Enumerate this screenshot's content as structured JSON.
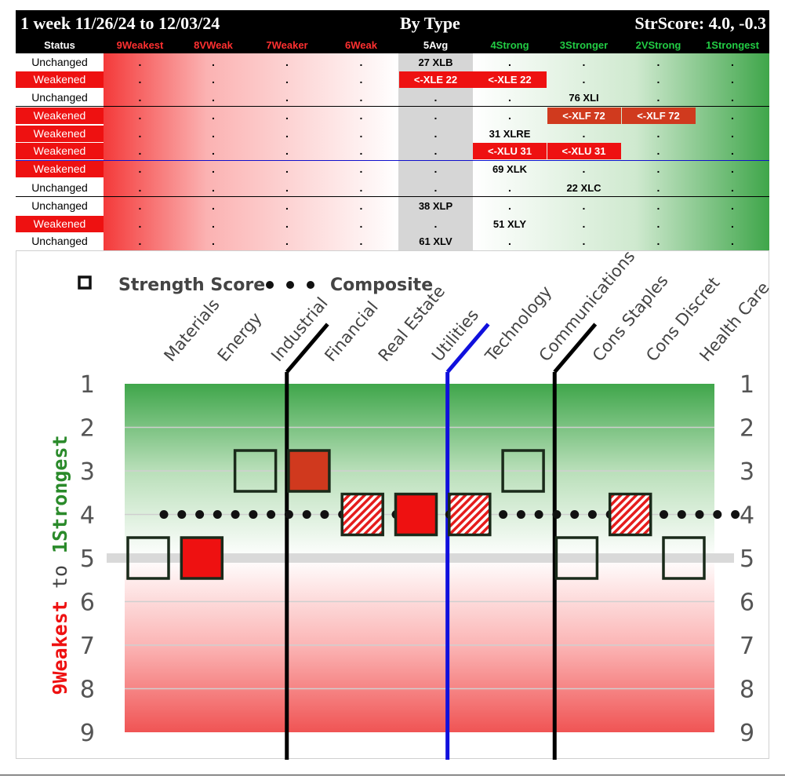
{
  "header": {
    "period": "1 week 11/26/24 to 12/03/24",
    "title": "By Type",
    "strscore": "StrScore: 4.0, -0.3"
  },
  "columns": [
    {
      "label": "Status",
      "color": "#ffffff"
    },
    {
      "label": "9Weakest",
      "color": "#ff3030"
    },
    {
      "label": "8VWeak",
      "color": "#ff3030"
    },
    {
      "label": "7Weaker",
      "color": "#ff3030"
    },
    {
      "label": "6Weak",
      "color": "#ff3030"
    },
    {
      "label": "5Avg",
      "color": "#ffffff"
    },
    {
      "label": "4Strong",
      "color": "#22cc44"
    },
    {
      "label": "3Stronger",
      "color": "#22cc44"
    },
    {
      "label": "2VStrong",
      "color": "#22cc44"
    },
    {
      "label": "1Strongest",
      "color": "#22cc44"
    }
  ],
  "rows": [
    {
      "status": "Unchanged",
      "cells": [
        ".",
        ".",
        ".",
        ".",
        "27 XLB",
        ".",
        ".",
        ".",
        "."
      ]
    },
    {
      "status": "Weakened",
      "cells": [
        ".",
        ".",
        ".",
        ".",
        "<-XLE 22",
        "<-XLE 22",
        ".",
        ".",
        "."
      ]
    },
    {
      "status": "Unchanged",
      "cells": [
        ".",
        ".",
        ".",
        ".",
        ".",
        ".",
        "76 XLI",
        ".",
        "."
      ]
    },
    {
      "status": "Weakened",
      "cells": [
        ".",
        ".",
        ".",
        ".",
        ".",
        ".",
        "<-XLF 72",
        "<-XLF 72",
        "."
      ]
    },
    {
      "status": "Weakened",
      "cells": [
        ".",
        ".",
        ".",
        ".",
        ".",
        "31 XLRE",
        ".",
        ".",
        "."
      ]
    },
    {
      "status": "Weakened",
      "cells": [
        ".",
        ".",
        ".",
        ".",
        ".",
        "<-XLU 31",
        "<-XLU 31",
        ".",
        "."
      ]
    },
    {
      "status": "Weakened",
      "cells": [
        ".",
        ".",
        ".",
        ".",
        ".",
        "69 XLK",
        ".",
        ".",
        "."
      ]
    },
    {
      "status": "Unchanged",
      "cells": [
        ".",
        ".",
        ".",
        ".",
        ".",
        ".",
        "22 XLC",
        ".",
        "."
      ]
    },
    {
      "status": "Unchanged",
      "cells": [
        ".",
        ".",
        ".",
        ".",
        "38 XLP",
        ".",
        ".",
        ".",
        "."
      ]
    },
    {
      "status": "Weakened",
      "cells": [
        ".",
        ".",
        ".",
        ".",
        ".",
        "51 XLY",
        ".",
        ".",
        "."
      ]
    },
    {
      "status": "Unchanged",
      "cells": [
        ".",
        ".",
        ".",
        ".",
        "61 XLV",
        ".",
        ".",
        ".",
        "."
      ]
    }
  ],
  "colors": {
    "weak_red": "#ee1111",
    "strong_green": "#3fa64a",
    "avg_gray": "#d6d6d6",
    "technology_line": "#1010dd",
    "group_line": "#000000"
  },
  "chart_data": {
    "type": "scatter",
    "legend": [
      "Strength Score",
      "Composite"
    ],
    "legend_position": "top",
    "categories": [
      "Materials",
      "Energy",
      "Industrial",
      "Financial",
      "Real Estate",
      "Utilities",
      "Technology",
      "Communications",
      "Cons Staples",
      "Cons Discret",
      "Health Care"
    ],
    "series": [
      {
        "name": "Strength Score",
        "values": [
          5,
          5,
          3,
          3,
          4,
          4,
          4,
          3,
          5,
          4,
          5
        ],
        "style": [
          "hollow",
          "red",
          "hollow",
          "dark-red",
          "hatched",
          "red",
          "hatched",
          "hollow",
          "hollow",
          "hatched",
          "hollow"
        ]
      },
      {
        "name": "Composite",
        "values": [
          4,
          4,
          4,
          4,
          4,
          4,
          4,
          4,
          4,
          4,
          4
        ]
      }
    ],
    "ylabel": "9Weakest to 1Strongest",
    "ylabel_weak": "9Weakest",
    "ylabel_to": "to",
    "ylabel_strong": "1Strongest",
    "y_ticks": [
      1,
      2,
      3,
      4,
      5,
      6,
      7,
      8,
      9
    ],
    "ylim": [
      1,
      9
    ],
    "y_inverted": true,
    "reference_line": 5
  }
}
